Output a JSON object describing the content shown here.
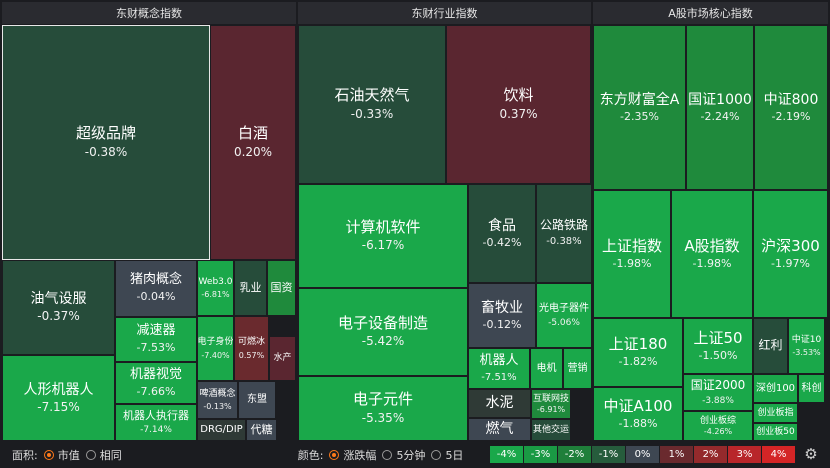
{
  "headers": [
    "东财概念指数",
    "东财行业指数",
    "A股市场核心指数"
  ],
  "colors": {
    "dark_green": "#264c3a",
    "mid_green": "#1f8a3c",
    "bright_green": "#1aa84a",
    "gray": "#3e4752",
    "red_dark": "#5a2630",
    "red_mid": "#6a2a2e"
  },
  "tiles": [
    {
      "name": "超级品牌",
      "pct": "-0.38%"
    },
    {
      "name": "白酒",
      "pct": "0.20%"
    },
    {
      "name": "油气设服",
      "pct": "-0.37%"
    },
    {
      "name": "猪肉概念",
      "pct": "-0.04%"
    },
    {
      "name": "Web3.0",
      "pct": "-6.81%"
    },
    {
      "name": "乳业",
      "pct": ""
    },
    {
      "name": "国资",
      "pct": ""
    },
    {
      "name": "减速器",
      "pct": "-7.53%"
    },
    {
      "name": "机器视觉",
      "pct": "-7.66%"
    },
    {
      "name": "电子身份",
      "pct": "-7.40%"
    },
    {
      "name": "可燃冰",
      "pct": "0.57%"
    },
    {
      "name": "水产",
      "pct": ""
    },
    {
      "name": "人形机器人",
      "pct": "-7.15%"
    },
    {
      "name": "机器人执行器",
      "pct": "-7.14%"
    },
    {
      "name": "啤酒概念",
      "pct": "-0.13%"
    },
    {
      "name": "东盟",
      "pct": ""
    },
    {
      "name": "DRG/DIP",
      "pct": ""
    },
    {
      "name": "代糖",
      "pct": ""
    },
    {
      "name": "石油天然气",
      "pct": "-0.33%"
    },
    {
      "name": "饮料",
      "pct": "0.37%"
    },
    {
      "name": "计算机软件",
      "pct": "-6.17%"
    },
    {
      "name": "食品",
      "pct": "-0.42%"
    },
    {
      "name": "公路铁路",
      "pct": "-0.38%"
    },
    {
      "name": "畜牧业",
      "pct": "-0.12%"
    },
    {
      "name": "光电子器件",
      "pct": "-5.06%"
    },
    {
      "name": "电子设备制造",
      "pct": "-5.42%"
    },
    {
      "name": "机器人",
      "pct": "-7.51%"
    },
    {
      "name": "电机",
      "pct": ""
    },
    {
      "name": "营销",
      "pct": ""
    },
    {
      "name": "水泥",
      "pct": ""
    },
    {
      "name": "互联网技",
      "pct": "-6.91%"
    },
    {
      "name": "电子元件",
      "pct": "-5.35%"
    },
    {
      "name": "燃气",
      "pct": ""
    },
    {
      "name": "其他交运",
      "pct": ""
    },
    {
      "name": "东方财富全A",
      "pct": "-2.35%"
    },
    {
      "name": "国证1000",
      "pct": "-2.24%"
    },
    {
      "name": "中证800",
      "pct": "-2.19%"
    },
    {
      "name": "上证指数",
      "pct": "-1.98%"
    },
    {
      "name": "A股指数",
      "pct": "-1.98%"
    },
    {
      "name": "沪深300",
      "pct": "-1.97%"
    },
    {
      "name": "上证180",
      "pct": "-1.82%"
    },
    {
      "name": "上证50",
      "pct": "-1.50%"
    },
    {
      "name": "红利",
      "pct": ""
    },
    {
      "name": "中证10",
      "pct": "-3.53%"
    },
    {
      "name": "国证2000",
      "pct": "-3.88%"
    },
    {
      "name": "深创100",
      "pct": ""
    },
    {
      "name": "科创",
      "pct": ""
    },
    {
      "name": "中证A100",
      "pct": "-1.88%"
    },
    {
      "name": "创业板综",
      "pct": "-4.26%"
    },
    {
      "name": "创业板指",
      "pct": ""
    },
    {
      "name": "创业板50",
      "pct": ""
    }
  ],
  "footer": {
    "area_label": "面积:",
    "area_options": [
      "市值",
      "相同"
    ],
    "area_selected": 0,
    "color_label": "颜色:",
    "color_options": [
      "涨跌幅",
      "5分钟",
      "5日"
    ],
    "color_selected": 0,
    "legend": [
      {
        "label": "-4%",
        "color": "#1aa84a"
      },
      {
        "label": "-3%",
        "color": "#1a9a44"
      },
      {
        "label": "-2%",
        "color": "#1f7f3a"
      },
      {
        "label": "-1%",
        "color": "#265c3c"
      },
      {
        "label": "0%",
        "color": "#3e4752"
      },
      {
        "label": "1%",
        "color": "#6a2a2e"
      },
      {
        "label": "2%",
        "color": "#942a2c"
      },
      {
        "label": "3%",
        "color": "#b8262a"
      },
      {
        "label": "4%",
        "color": "#d42526"
      }
    ],
    "settings_icon": "gear-icon"
  }
}
